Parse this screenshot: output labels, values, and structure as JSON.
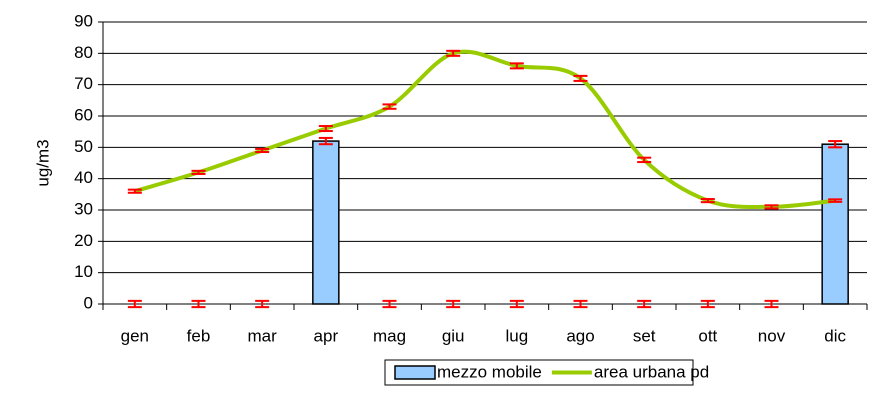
{
  "chart_data": {
    "type": "bar-line",
    "y_label": "ug/m3",
    "categories": [
      "gen",
      "feb",
      "mar",
      "apr",
      "mag",
      "giu",
      "lug",
      "ago",
      "set",
      "ott",
      "nov",
      "dic"
    ],
    "series": [
      {
        "name": "mezzo mobile",
        "type": "bar",
        "color": "#99ccff",
        "values": [
          0,
          0,
          0,
          52,
          0,
          0,
          0,
          0,
          0,
          0,
          0,
          51
        ],
        "errors": [
          1,
          1,
          1,
          1,
          1,
          1,
          1,
          1,
          1,
          1,
          1,
          1
        ]
      },
      {
        "name": "area urbana pd",
        "type": "line",
        "color": "#99cc00",
        "values": [
          36,
          42,
          49,
          56,
          63,
          80,
          76,
          72,
          46,
          33,
          31,
          33
        ],
        "errors": [
          0.5,
          0.5,
          0.5,
          0.8,
          0.7,
          0.8,
          0.8,
          0.8,
          0.7,
          0.5,
          0.5,
          0.4
        ]
      }
    ],
    "error_color": "#ff0000",
    "ylim": [
      0,
      90
    ],
    "yticks": [
      0,
      10,
      20,
      30,
      40,
      50,
      60,
      70,
      80,
      90
    ],
    "grid": true,
    "legend": "bottom"
  }
}
